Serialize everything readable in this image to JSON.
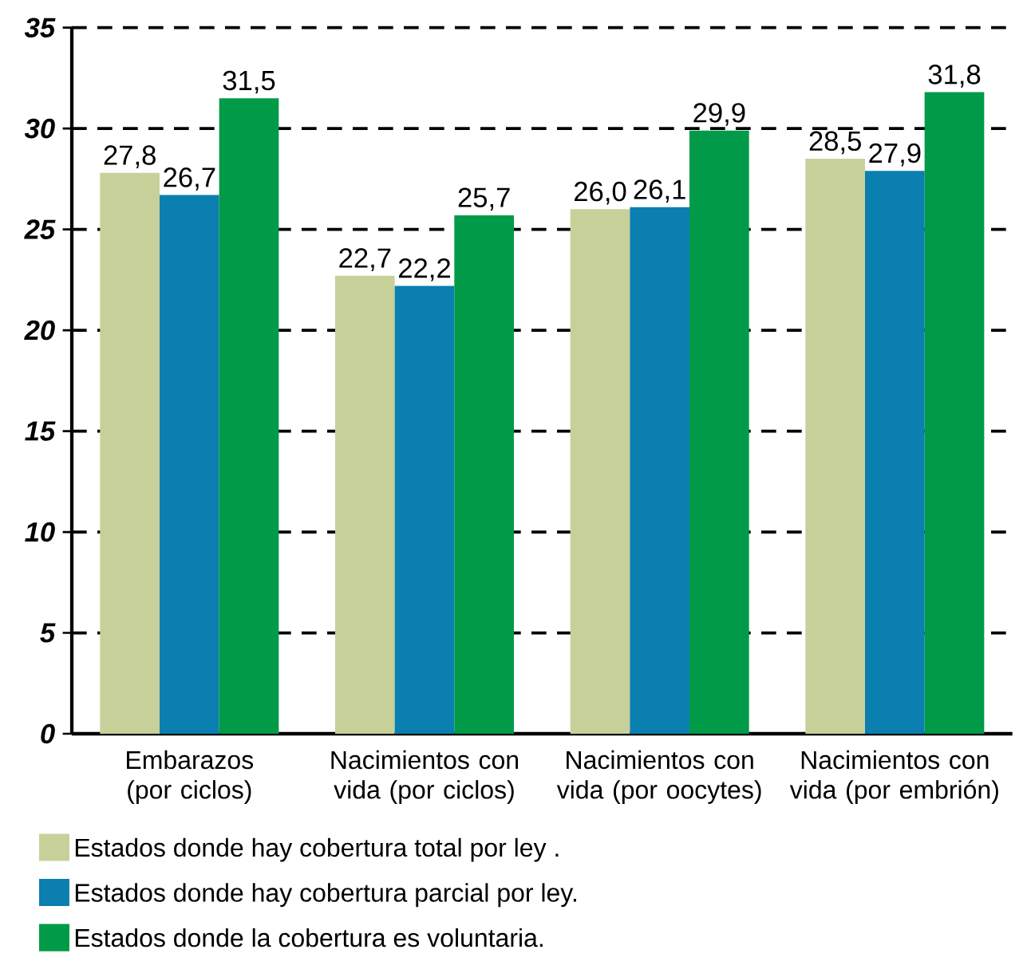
{
  "chart_data": {
    "type": "bar",
    "categories": [
      "Embarazos (por ciclos)",
      "Nacimientos con vida (por ciclos)",
      "Nacimientos con vida (por oocytes)",
      "Nacimientos con vida (por embrión)"
    ],
    "series": [
      {
        "name": "Estados donde hay cobertura total por ley .",
        "color": "#c8d09a",
        "values": [
          27.8,
          22.7,
          26.0,
          28.5
        ],
        "value_labels": [
          "27,8",
          "22,7",
          "26,0",
          "28,5"
        ]
      },
      {
        "name": "Estados donde hay cobertura parcial por ley.",
        "color": "#0a7fb0",
        "values": [
          26.7,
          22.2,
          26.1,
          27.9
        ],
        "value_labels": [
          "26,7",
          "22,2",
          "26,1",
          "27,9"
        ]
      },
      {
        "name": "Estados donde la cobertura es voluntaria.",
        "color": "#009a48",
        "values": [
          31.5,
          25.7,
          29.9,
          31.8
        ],
        "value_labels": [
          "31,5",
          "25,7",
          "29,9",
          "31,8"
        ]
      }
    ],
    "ylim": [
      0,
      35
    ],
    "yticks": [
      0,
      5,
      10,
      15,
      20,
      25,
      30,
      35
    ],
    "grid": "y",
    "legend": "bottom left"
  }
}
